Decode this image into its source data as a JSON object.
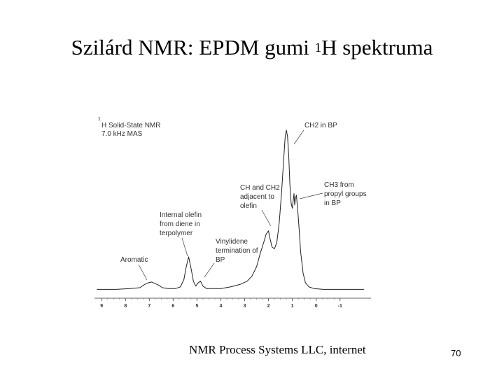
{
  "slide": {
    "title_main": "Szilárd NMR: EPDM gumi ",
    "title_sup": "1",
    "title_tail": "H spektruma",
    "source": "NMR Process Systems LLC, internet",
    "page_number": "70"
  },
  "chart_data": {
    "type": "line",
    "title": "",
    "xlabel": "",
    "ylabel": "",
    "x_reversed": true,
    "xlim": [
      -2.3,
      9.3
    ],
    "ylim": [
      0,
      100
    ],
    "grid": false,
    "legend": "none",
    "xticks": [
      9,
      8,
      7,
      6,
      5,
      4,
      3,
      2,
      1,
      0,
      -1
    ],
    "header_lines": [
      "H Solid-State NMR",
      "7.0 kHz MAS"
    ],
    "header_sup": "1",
    "series": [
      {
        "x": [
          9.2,
          8.4,
          7.8,
          7.4,
          7.2,
          7.05,
          6.9,
          6.75,
          6.6,
          6.45,
          6.2,
          5.9,
          5.7,
          5.55,
          5.45,
          5.35,
          5.25,
          5.15,
          5.05,
          4.95,
          4.85,
          4.75,
          4.6,
          4.4,
          4.0,
          3.6,
          3.2,
          2.9,
          2.7,
          2.5,
          2.35,
          2.2,
          2.1,
          2.0,
          1.95,
          1.85,
          1.75,
          1.65,
          1.55,
          1.45,
          1.35,
          1.3,
          1.25,
          1.2,
          1.15,
          1.1,
          1.05,
          1.0,
          0.97,
          0.93,
          0.9,
          0.87,
          0.83,
          0.78,
          0.72,
          0.65,
          0.55,
          0.45,
          0.3,
          0.1,
          -0.3,
          -1.0,
          -2.0
        ],
        "y": [
          2,
          2,
          2.5,
          3,
          5,
          6,
          6.5,
          5.5,
          4.5,
          3,
          2.5,
          2.5,
          3.5,
          8,
          16,
          22,
          15,
          7,
          4,
          6,
          7,
          4,
          2.5,
          2.5,
          2.5,
          3.5,
          5,
          7,
          10,
          16,
          24,
          31,
          36,
          38,
          34,
          28,
          27,
          31,
          43,
          62,
          85,
          96,
          100,
          96,
          84,
          66,
          55,
          52,
          56,
          61,
          54,
          58,
          60,
          52,
          40,
          25,
          12,
          6,
          3.5,
          2.5,
          2,
          2,
          2
        ]
      }
    ],
    "annotations": [
      {
        "lines": [
          "CH2 in BP"
        ]
      },
      {
        "lines": [
          "CH3 from",
          "propyl groups",
          "in BP"
        ]
      },
      {
        "lines": [
          "CH and CH2",
          "adjacent to",
          "olefin"
        ]
      },
      {
        "lines": [
          "Internal olefin",
          "from diene in",
          "terpolymer"
        ]
      },
      {
        "lines": [
          "Vinylidene",
          "termination of",
          "BP"
        ]
      },
      {
        "lines": [
          "Aromatic"
        ]
      }
    ]
  }
}
